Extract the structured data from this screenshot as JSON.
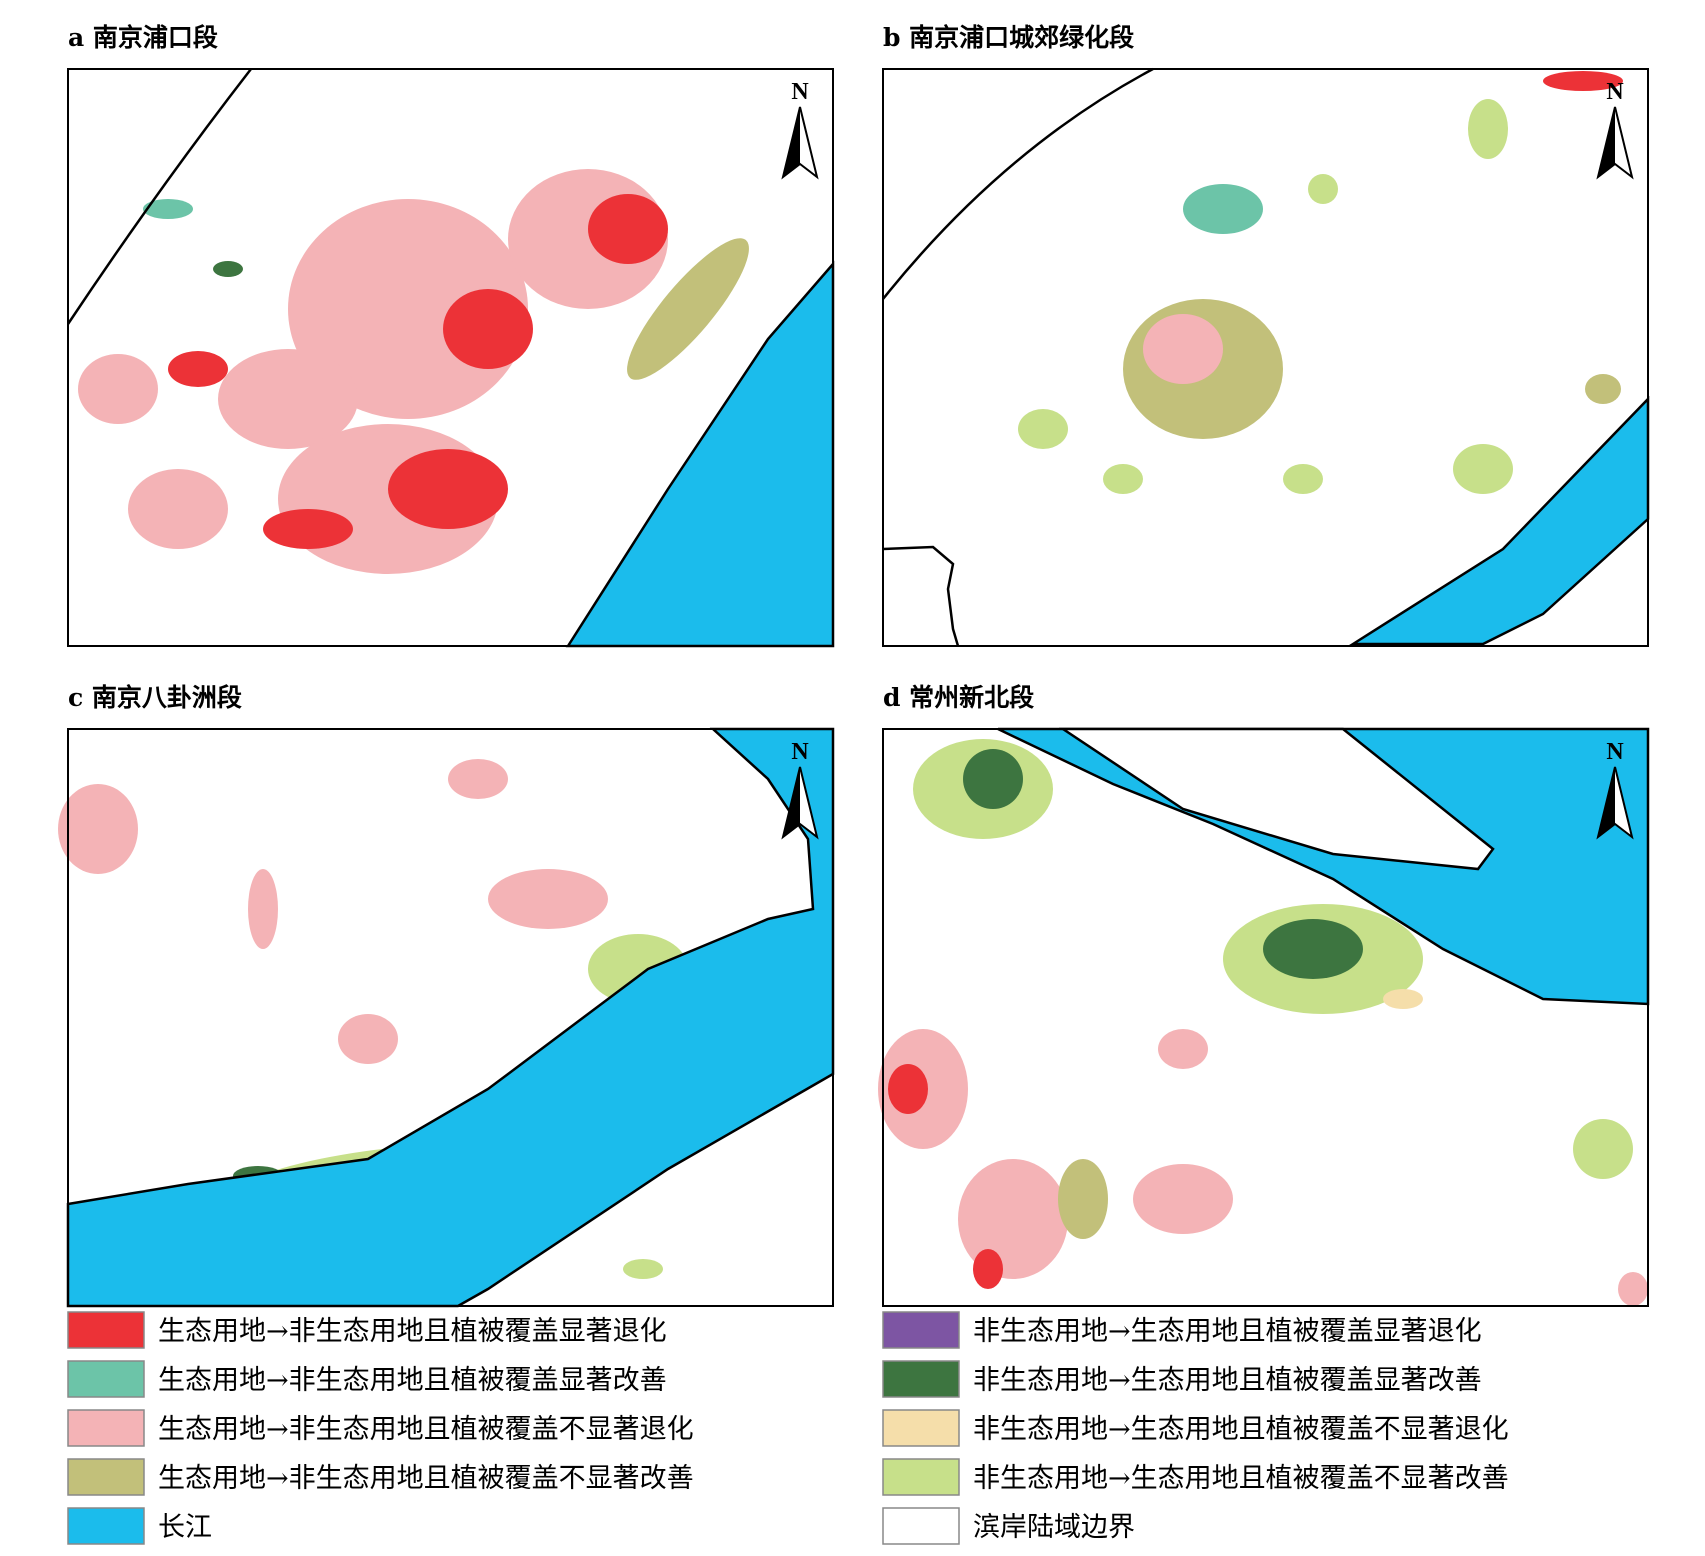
{
  "panels": [
    {
      "title": "a 南京浦口段"
    },
    {
      "title": "b 南京浦口城郊绿化段"
    },
    {
      "title": "c 南京八卦洲段"
    },
    {
      "title": "d 常州新北段"
    }
  ],
  "north_label": "N",
  "legend": [
    {
      "label": "生态用地→非生态用地且植被覆盖显著退化",
      "color": "#ec3237"
    },
    {
      "label": "生态用地→非生态用地且植被覆盖显著改善",
      "color": "#6cc4a8"
    },
    {
      "label": "生态用地→非生态用地且植被覆盖不显著退化",
      "color": "#f4b3b6"
    },
    {
      "label": "生态用地→非生态用地且植被覆盖不显著改善",
      "color": "#c2c07a"
    },
    {
      "label": "长江",
      "color": "#1bbcec"
    },
    {
      "label": "非生态用地→生态用地且植被覆盖显著退化",
      "color": "#7d55a3"
    },
    {
      "label": "非生态用地→生态用地且植被覆盖显著改善",
      "color": "#3d7540"
    },
    {
      "label": "非生态用地→生态用地且植被覆盖不显著退化",
      "color": "#f5deaa"
    },
    {
      "label": "非生态用地→生态用地且植被覆盖不显著改善",
      "color": "#c7e08a"
    },
    {
      "label": "滨岸陆域边界",
      "color": "#ffffff"
    }
  ]
}
